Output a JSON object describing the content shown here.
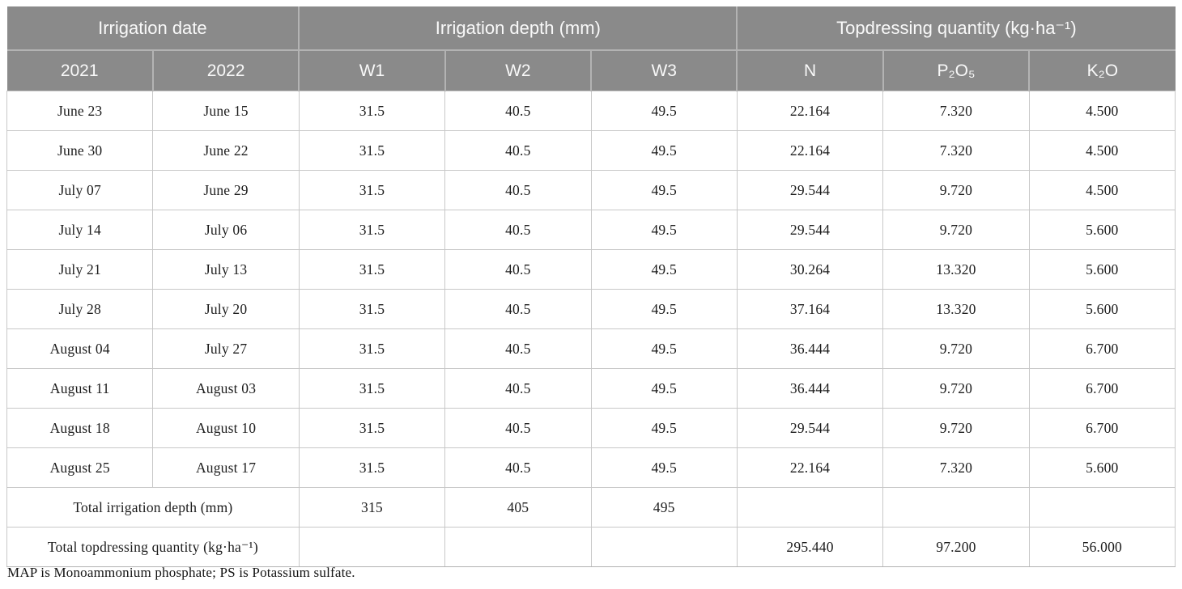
{
  "table": {
    "header_groups": [
      {
        "label": "Irrigation date",
        "colspan": 2
      },
      {
        "label": "Irrigation depth (mm)",
        "colspan": 3
      },
      {
        "label": "Topdressing quantity (kg·ha⁻¹)",
        "colspan": 3
      }
    ],
    "columns": [
      "2021",
      "2022",
      "W1",
      "W2",
      "W3",
      "N",
      "P₂O₅",
      "K₂O"
    ],
    "rows": [
      [
        "June 23",
        "June 15",
        "31.5",
        "40.5",
        "49.5",
        "22.164",
        "7.320",
        "4.500"
      ],
      [
        "June 30",
        "June 22",
        "31.5",
        "40.5",
        "49.5",
        "22.164",
        "7.320",
        "4.500"
      ],
      [
        "July 07",
        "June 29",
        "31.5",
        "40.5",
        "49.5",
        "29.544",
        "9.720",
        "4.500"
      ],
      [
        "July 14",
        "July 06",
        "31.5",
        "40.5",
        "49.5",
        "29.544",
        "9.720",
        "5.600"
      ],
      [
        "July 21",
        "July 13",
        "31.5",
        "40.5",
        "49.5",
        "30.264",
        "13.320",
        "5.600"
      ],
      [
        "July 28",
        "July 20",
        "31.5",
        "40.5",
        "49.5",
        "37.164",
        "13.320",
        "5.600"
      ],
      [
        "August 04",
        "July 27",
        "31.5",
        "40.5",
        "49.5",
        "36.444",
        "9.720",
        "6.700"
      ],
      [
        "August 11",
        "August 03",
        "31.5",
        "40.5",
        "49.5",
        "36.444",
        "9.720",
        "6.700"
      ],
      [
        "August 18",
        "August 10",
        "31.5",
        "40.5",
        "49.5",
        "29.544",
        "9.720",
        "6.700"
      ],
      [
        "August 25",
        "August 17",
        "31.5",
        "40.5",
        "49.5",
        "22.164",
        "7.320",
        "5.600"
      ]
    ],
    "total_rows": [
      {
        "label": "Total irrigation depth (mm)",
        "cells": [
          "315",
          "405",
          "495",
          "",
          "",
          ""
        ]
      },
      {
        "label": "Total topdressing quantity (kg·ha⁻¹)",
        "cells": [
          "",
          "",
          "",
          "295.440",
          "97.200",
          "56.000"
        ]
      }
    ],
    "footnote": "MAP is Monoammonium phosphate; PS is Potassium sulfate.",
    "colors": {
      "header_bg": "#8a8a8a",
      "header_text": "#f9f9f9",
      "header_divider": "#b3b3b3",
      "grid_line": "#c8c8c8",
      "body_text": "#1c1c1c"
    }
  }
}
